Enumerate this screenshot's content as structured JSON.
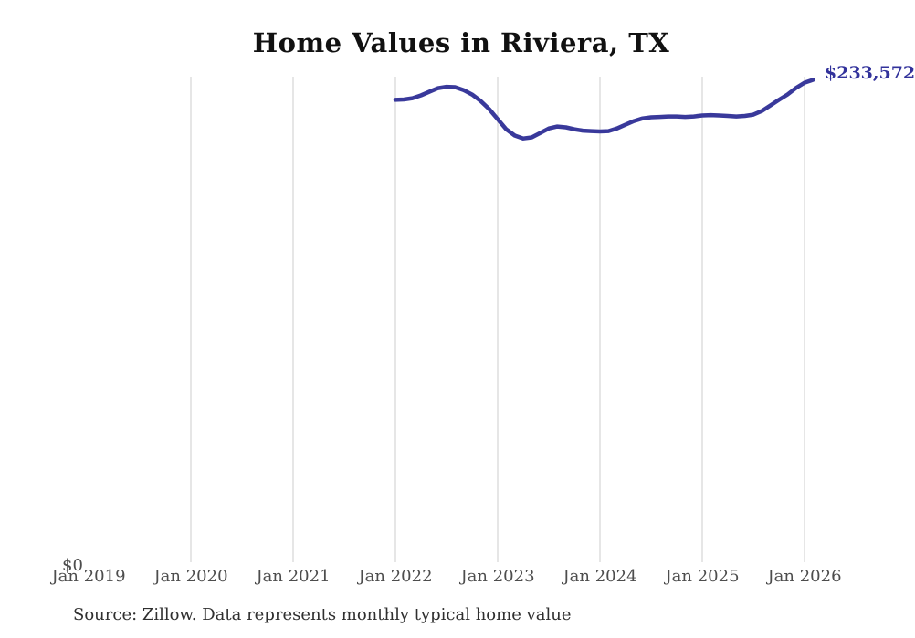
{
  "title": "Home Values in Riviera, TX",
  "chart_data": {
    "type": "line",
    "title": "Home Values in Riviera, TX",
    "xlabel": "",
    "ylabel": "",
    "xticks": [
      "Jan 2019",
      "Jan 2020",
      "Jan 2021",
      "Jan 2022",
      "Jan 2023",
      "Jan 2024",
      "Jan 2025",
      "Jan 2026"
    ],
    "y_zero_label": "$0",
    "end_label": "$233,572",
    "ylim": [
      0,
      233572
    ],
    "grid": "vertical-only",
    "legend": "none",
    "line_color": "#39399b",
    "end_label_color": "#32329b",
    "gridline_color": "#cccccc",
    "series": [
      {
        "name": "Monthly typical home value (USD)",
        "x": [
          "2022-01",
          "2022-02",
          "2022-03",
          "2022-04",
          "2022-05",
          "2022-06",
          "2022-07",
          "2022-08",
          "2022-09",
          "2022-10",
          "2022-11",
          "2022-12",
          "2023-01",
          "2023-02",
          "2023-03",
          "2023-04",
          "2023-05",
          "2023-06",
          "2023-07",
          "2023-08",
          "2023-09",
          "2023-10",
          "2023-11",
          "2023-12",
          "2024-01",
          "2024-02",
          "2024-03",
          "2024-04",
          "2024-05",
          "2024-06",
          "2024-07",
          "2024-08",
          "2024-09",
          "2024-10",
          "2024-11",
          "2024-12",
          "2025-01",
          "2025-02",
          "2025-03",
          "2025-04",
          "2025-05",
          "2025-06",
          "2025-07",
          "2025-08",
          "2025-09",
          "2025-10",
          "2025-11",
          "2025-12",
          "2026-01",
          "2026-02"
        ],
        "values": [
          223800,
          224000,
          224600,
          226000,
          227800,
          229500,
          230200,
          230000,
          228600,
          226400,
          223300,
          219300,
          214400,
          209500,
          206400,
          205000,
          205500,
          207700,
          209900,
          210800,
          210400,
          209500,
          208800,
          208600,
          208400,
          208600,
          209900,
          211700,
          213500,
          214800,
          215300,
          215500,
          215700,
          215700,
          215500,
          215700,
          216200,
          216400,
          216200,
          216000,
          215700,
          216000,
          216600,
          218400,
          221100,
          223800,
          226400,
          229600,
          232200,
          233572
        ]
      }
    ],
    "source": "Source: Zillow. Data represents monthly typical home value"
  }
}
